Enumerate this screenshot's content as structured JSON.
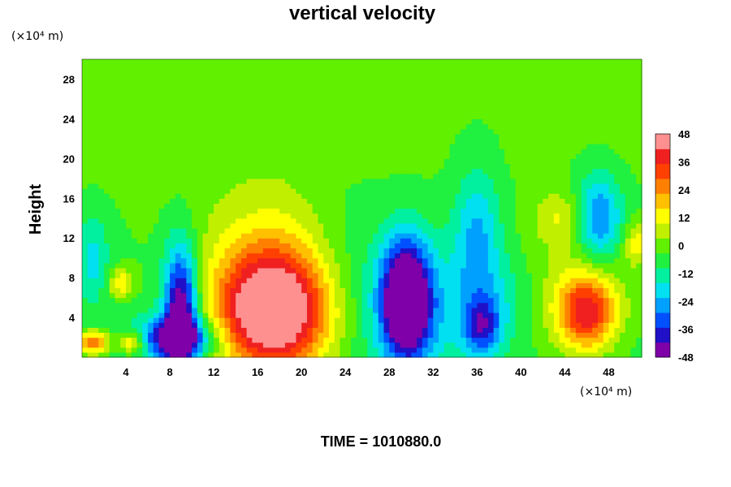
{
  "chart_data": {
    "type": "heatmap",
    "title": "vertical velocity",
    "ylabel": "Height",
    "xlabel": "",
    "x_unit": "(×10⁴ m)",
    "y_unit": "(×10⁴ m)",
    "xlim": [
      0,
      51
    ],
    "ylim": [
      0,
      30
    ],
    "x_ticks": [
      4,
      8,
      12,
      16,
      20,
      24,
      28,
      32,
      36,
      40,
      44,
      48
    ],
    "y_ticks": [
      4,
      8,
      12,
      16,
      20,
      24,
      28
    ],
    "colorbar": {
      "range": [
        -48,
        48
      ],
      "ticks": [
        48,
        36,
        24,
        12,
        0,
        -12,
        -24,
        -36,
        -48
      ],
      "colors": [
        "#7f00a8",
        "#2010c8",
        "#0050ff",
        "#00a0ff",
        "#00e0f0",
        "#00f0a0",
        "#20f040",
        "#60f000",
        "#c0f000",
        "#ffff00",
        "#ffc000",
        "#ff8000",
        "#ff4000",
        "#f02020",
        "#ff9090"
      ]
    },
    "background_value": -2,
    "features": [
      {
        "x": 17.5,
        "y": 4.5,
        "sx": 3.6,
        "sy": 4.2,
        "value": 53
      },
      {
        "x": 17.0,
        "y": 8.0,
        "sx": 4.5,
        "sy": 6.5,
        "value": 18
      },
      {
        "x": 46.0,
        "y": 4.5,
        "sx": 1.8,
        "sy": 2.6,
        "value": 36
      },
      {
        "x": 45.0,
        "y": 6.0,
        "sx": 3.5,
        "sy": 4.0,
        "value": 12
      },
      {
        "x": 9.0,
        "y": 5.0,
        "sx": 1.1,
        "sy": 4.5,
        "value": -48
      },
      {
        "x": 8.5,
        "y": 2.0,
        "sx": 2.5,
        "sy": 1.5,
        "value": -38
      },
      {
        "x": 29.5,
        "y": 6.0,
        "sx": 1.5,
        "sy": 4.0,
        "value": -52
      },
      {
        "x": 30.0,
        "y": 5.0,
        "sx": 3.0,
        "sy": 5.0,
        "value": -18
      },
      {
        "x": 36.5,
        "y": 3.0,
        "sx": 1.2,
        "sy": 2.0,
        "value": -28
      },
      {
        "x": 36.0,
        "y": 12.0,
        "sx": 1.5,
        "sy": 5.0,
        "value": -20
      },
      {
        "x": 47.0,
        "y": 14.0,
        "sx": 1.5,
        "sy": 3.0,
        "value": -30
      },
      {
        "x": 1.0,
        "y": 1.5,
        "sx": 1.0,
        "sy": 0.8,
        "value": 35
      },
      {
        "x": 4.5,
        "y": 1.5,
        "sx": 0.8,
        "sy": 0.8,
        "value": 28
      },
      {
        "x": 3.5,
        "y": 7.5,
        "sx": 0.8,
        "sy": 1.0,
        "value": 20
      },
      {
        "x": 1.0,
        "y": 10.0,
        "sx": 1.0,
        "sy": 3.0,
        "value": -15
      },
      {
        "x": 38.0,
        "y": 6.0,
        "sx": 2.5,
        "sy": 3.0,
        "value": -10
      },
      {
        "x": 44.0,
        "y": 14.0,
        "sx": 2.0,
        "sy": 2.0,
        "value": 14
      },
      {
        "x": 50.5,
        "y": 11.5,
        "sx": 0.8,
        "sy": 1.5,
        "value": 16
      },
      {
        "x": 23.5,
        "y": 9.0,
        "sx": 2.5,
        "sy": 6.0,
        "value": -6
      }
    ]
  },
  "footer": "TIME = 1010880.0"
}
